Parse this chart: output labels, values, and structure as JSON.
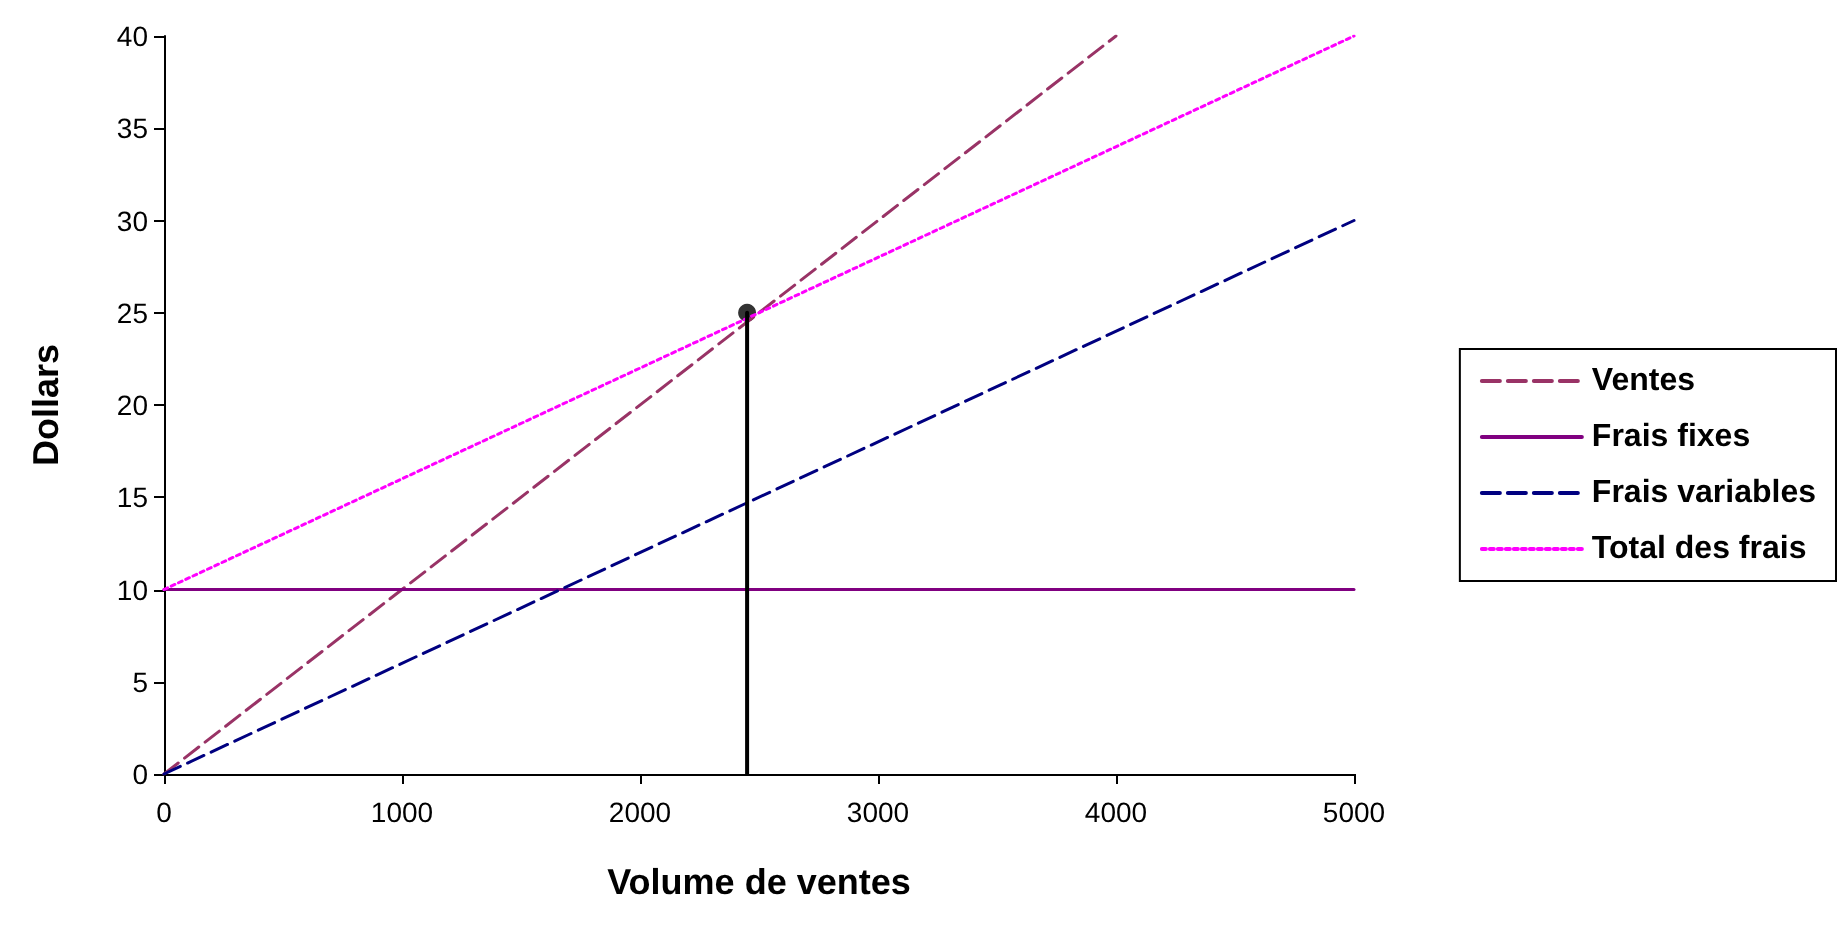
{
  "chart_data": {
    "type": "line",
    "xlabel": "Volume de ventes",
    "ylabel": "Dollars",
    "xlim": [
      0,
      5000
    ],
    "xticks": [
      0,
      1000,
      2000,
      3000,
      4000,
      5000
    ],
    "ylim": [
      0,
      40
    ],
    "yticks": [
      0,
      5,
      10,
      15,
      20,
      25,
      30,
      35,
      40
    ],
    "grid": false,
    "legend": "right",
    "marker": "none",
    "series": [
      {
        "name": "Ventes",
        "color": "#993366",
        "line_style": "dashed",
        "x": [
          0,
          4000
        ],
        "values": [
          0,
          40
        ]
      },
      {
        "name": "Frais fixes",
        "color": "#800080",
        "line_style": "solid",
        "x": [
          0,
          5000
        ],
        "values": [
          10,
          10
        ]
      },
      {
        "name": "Frais variables",
        "color": "#000080",
        "line_style": "dashed",
        "x": [
          0,
          5000
        ],
        "values": [
          0,
          30
        ]
      },
      {
        "name": "Total des frais",
        "color": "#ff00ff",
        "line_style": "dotted",
        "x": [
          0,
          5000
        ],
        "values": [
          10,
          40
        ]
      },
      {
        "color": "#000000",
        "line_style": "solid",
        "x": [
          2450,
          2450
        ],
        "values": [
          0,
          25
        ]
      },
      {
        "type": "scatter",
        "color": "#000000",
        "marker": "circle",
        "x": [
          2450
        ],
        "values": [
          25
        ]
      }
    ]
  }
}
